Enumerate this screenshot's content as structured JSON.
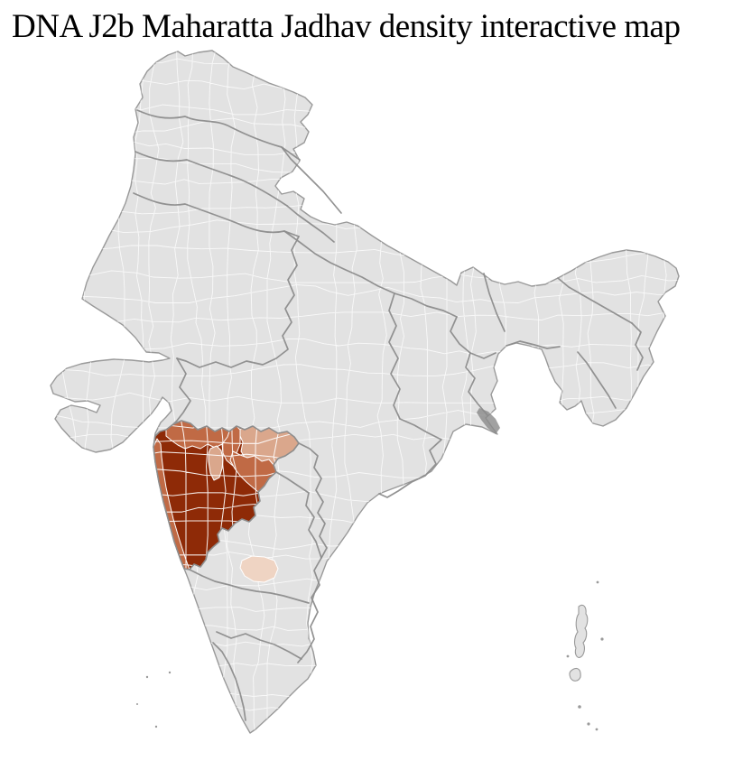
{
  "title": "DNA J2b Maharatta Jadhav density interactive map",
  "map": {
    "region": "India",
    "subdivision": "districts",
    "background": "#ffffff",
    "base_fill": "#e2e2e2",
    "district_border": "#ffffff",
    "state_border": "#8c8c8c",
    "coast_outline": "#999999",
    "delta_patch": "#8a8a8a"
  },
  "chart_data": {
    "type": "choropleth",
    "title": "DNA J2b Maharatta Jadhav density interactive map",
    "region": "India (district level map)",
    "highlighted_area": "Maharashtra and adjacent districts",
    "density_levels": [
      {
        "level": "high",
        "color": "#8e2a07",
        "area": "western and central Maharashtra districts (Desh / Marathwada core)"
      },
      {
        "level": "medium",
        "color": "#c06a45",
        "area": "north Maharashtra band, Konkan coastal strip and west Vidarbha districts"
      },
      {
        "level": "low",
        "color": "#daa78c",
        "area": "north-east Maharashtra districts (Nagpur region) and one central district"
      },
      {
        "level": "very_low",
        "color": "#efd4c3",
        "area": "isolated district in northern Karnataka"
      }
    ],
    "all_other_districts": "no data (light gray)",
    "legend": "none shown",
    "islands_shown": [
      "Andaman and Nicobar chain (east)",
      "Lakshadweep specks (west)"
    ]
  }
}
